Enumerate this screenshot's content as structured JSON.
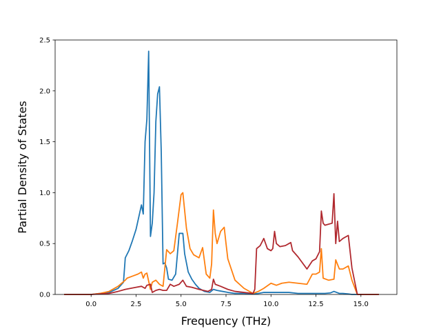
{
  "chart_data": {
    "type": "line",
    "xlabel": "Frequency (THz)",
    "ylabel": "Partial Density of States",
    "xlim": [
      -2.0,
      17.0
    ],
    "ylim": [
      0.0,
      2.5
    ],
    "x_ticks": [
      0.0,
      2.5,
      5.0,
      7.5,
      10.0,
      12.5,
      15.0
    ],
    "x_tick_labels": [
      "0.0",
      "2.5",
      "5.0",
      "7.5",
      "10.0",
      "12.5",
      "15.0"
    ],
    "y_ticks": [
      0.0,
      0.5,
      1.0,
      1.5,
      2.0,
      2.5
    ],
    "y_tick_labels": [
      "0.0",
      "0.5",
      "1.0",
      "1.5",
      "2.0",
      "2.5"
    ],
    "grid": false,
    "legend": null,
    "series": [
      {
        "color": "#1f77b4",
        "x": [
          -1.5,
          0.0,
          0.5,
          1.0,
          1.5,
          1.8,
          1.9,
          2.1,
          2.3,
          2.5,
          2.7,
          2.8,
          2.9,
          3.0,
          3.1,
          3.2,
          3.3,
          3.4,
          3.5,
          3.6,
          3.7,
          3.8,
          3.9,
          4.0,
          4.1,
          4.2,
          4.3,
          4.5,
          4.7,
          4.9,
          5.1,
          5.2,
          5.4,
          5.6,
          5.8,
          6.0,
          6.3,
          6.6,
          6.8,
          7.0,
          7.3,
          7.6,
          8.0,
          8.5,
          9.0,
          9.3,
          9.6,
          10.0,
          10.5,
          11.0,
          11.5,
          12.0,
          12.5,
          13.0,
          13.3,
          13.5,
          13.8,
          14.0,
          14.3,
          14.5,
          15.0,
          16.0
        ],
        "y": [
          0.0,
          0.0,
          0.01,
          0.02,
          0.06,
          0.12,
          0.36,
          0.43,
          0.53,
          0.64,
          0.8,
          0.88,
          0.79,
          1.5,
          1.72,
          2.39,
          0.57,
          0.7,
          1.0,
          1.7,
          1.97,
          2.04,
          1.4,
          0.3,
          0.31,
          0.26,
          0.15,
          0.14,
          0.2,
          0.6,
          0.6,
          0.4,
          0.22,
          0.15,
          0.1,
          0.06,
          0.03,
          0.02,
          0.05,
          0.04,
          0.03,
          0.02,
          0.01,
          0.01,
          0.005,
          0.01,
          0.02,
          0.02,
          0.02,
          0.02,
          0.01,
          0.01,
          0.01,
          0.01,
          0.015,
          0.03,
          0.01,
          0.01,
          0.005,
          0.0,
          0.0,
          0.0
        ]
      },
      {
        "color": "#ff7f0e",
        "x": [
          -1.5,
          0.0,
          0.5,
          1.0,
          1.5,
          1.9,
          2.0,
          2.3,
          2.6,
          2.8,
          2.9,
          3.0,
          3.1,
          3.3,
          3.4,
          3.6,
          3.8,
          4.0,
          4.2,
          4.4,
          4.6,
          4.8,
          5.0,
          5.1,
          5.3,
          5.5,
          5.7,
          6.0,
          6.2,
          6.4,
          6.6,
          6.7,
          6.8,
          6.9,
          7.0,
          7.2,
          7.4,
          7.5,
          7.6,
          8.0,
          8.5,
          9.0,
          9.3,
          9.6,
          10.0,
          10.3,
          10.6,
          11.0,
          11.5,
          12.0,
          12.3,
          12.5,
          12.7,
          12.8,
          12.9,
          13.2,
          13.5,
          13.6,
          13.8,
          14.0,
          14.3,
          14.5,
          14.8,
          16.0
        ],
        "y": [
          0.0,
          0.0,
          0.01,
          0.03,
          0.08,
          0.14,
          0.16,
          0.18,
          0.2,
          0.22,
          0.16,
          0.2,
          0.21,
          0.05,
          0.12,
          0.14,
          0.1,
          0.08,
          0.44,
          0.4,
          0.43,
          0.7,
          0.98,
          1.0,
          0.65,
          0.45,
          0.39,
          0.36,
          0.46,
          0.2,
          0.16,
          0.3,
          0.83,
          0.6,
          0.5,
          0.62,
          0.66,
          0.5,
          0.35,
          0.14,
          0.06,
          0.01,
          0.03,
          0.06,
          0.11,
          0.09,
          0.11,
          0.12,
          0.11,
          0.1,
          0.2,
          0.2,
          0.22,
          0.45,
          0.16,
          0.14,
          0.15,
          0.34,
          0.25,
          0.25,
          0.28,
          0.14,
          0.0,
          0.0
        ]
      },
      {
        "color": "#b0282e",
        "x": [
          -1.5,
          0.0,
          0.5,
          1.0,
          1.5,
          1.9,
          2.2,
          2.5,
          2.8,
          3.0,
          3.1,
          3.3,
          3.4,
          3.6,
          3.8,
          4.0,
          4.2,
          4.4,
          4.6,
          4.9,
          5.1,
          5.3,
          5.6,
          6.0,
          6.5,
          6.7,
          6.8,
          6.9,
          7.2,
          7.6,
          8.0,
          8.5,
          9.0,
          9.1,
          9.2,
          9.4,
          9.6,
          9.8,
          10.0,
          10.1,
          10.2,
          10.3,
          10.5,
          10.8,
          11.0,
          11.1,
          11.2,
          11.5,
          12.0,
          12.3,
          12.5,
          12.7,
          12.8,
          12.9,
          13.0,
          13.2,
          13.4,
          13.5,
          13.6,
          13.7,
          13.8,
          14.0,
          14.3,
          14.5,
          14.8,
          16.0
        ],
        "y": [
          0.0,
          0.0,
          0.005,
          0.01,
          0.03,
          0.05,
          0.06,
          0.07,
          0.08,
          0.06,
          0.09,
          0.1,
          0.02,
          0.04,
          0.05,
          0.04,
          0.04,
          0.1,
          0.08,
          0.1,
          0.14,
          0.08,
          0.07,
          0.05,
          0.03,
          0.05,
          0.15,
          0.1,
          0.08,
          0.05,
          0.03,
          0.02,
          0.01,
          0.05,
          0.45,
          0.48,
          0.55,
          0.45,
          0.43,
          0.45,
          0.62,
          0.5,
          0.47,
          0.48,
          0.5,
          0.51,
          0.43,
          0.37,
          0.25,
          0.33,
          0.35,
          0.42,
          0.82,
          0.7,
          0.68,
          0.69,
          0.7,
          0.99,
          0.5,
          0.72,
          0.52,
          0.55,
          0.58,
          0.26,
          0.0,
          0.0
        ]
      }
    ]
  }
}
